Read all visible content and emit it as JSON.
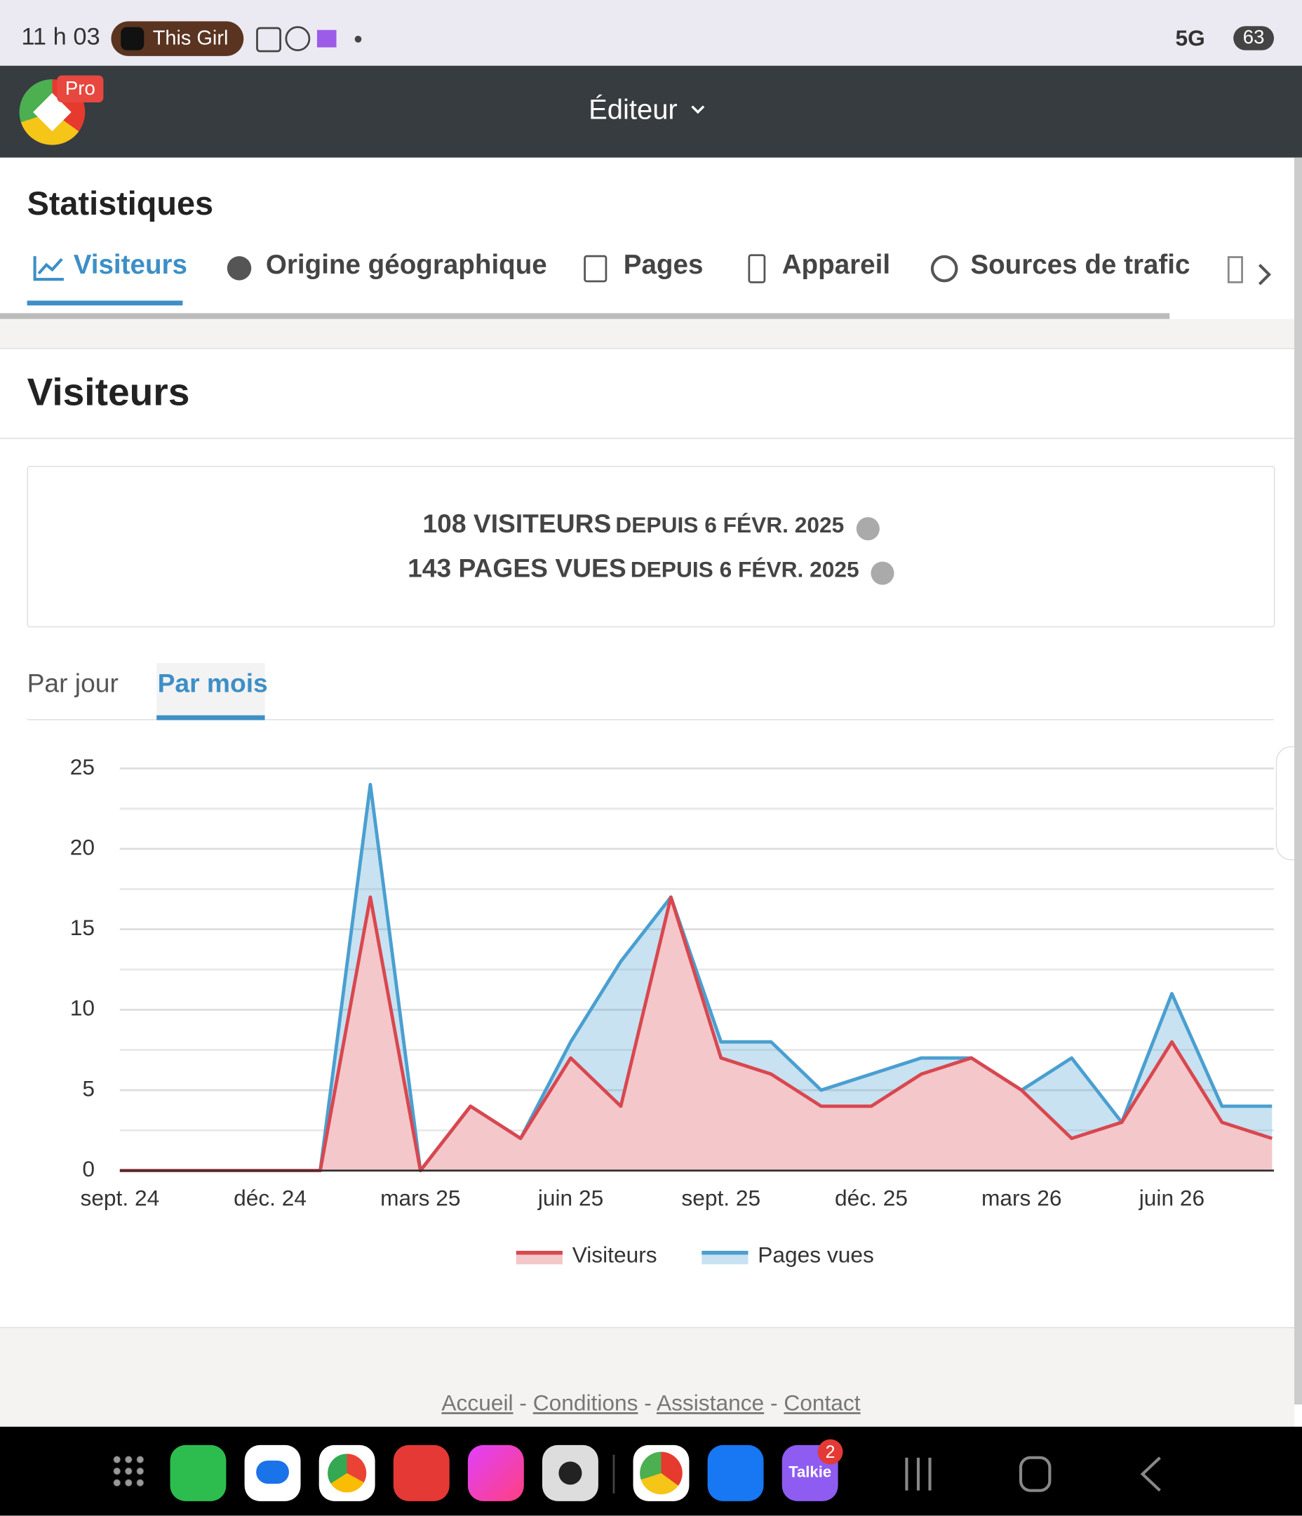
{
  "status_bar": {
    "time": "11 h 03",
    "media": "This Girl",
    "network": "5G",
    "battery": "63"
  },
  "header": {
    "badge": "Pro",
    "title": "Éditeur"
  },
  "page_title": "Statistiques",
  "tabs": [
    "Visiteurs",
    "Origine géographique",
    "Pages",
    "Appareil",
    "Sources de trafic"
  ],
  "section_title": "Visiteurs",
  "summary": [
    {
      "count": "108 VISITEURS",
      "since": "DEPUIS 6 FÉVR. 2025"
    },
    {
      "count": "143 PAGES VUES",
      "since": "DEPUIS 6 FÉVR. 2025"
    }
  ],
  "period_tabs": [
    "Par jour",
    "Par mois"
  ],
  "chart_data": {
    "type": "area",
    "categories": [
      "sept. 24",
      null,
      null,
      "déc. 24",
      null,
      null,
      "mars 25",
      null,
      null,
      "juin 25",
      null,
      null,
      "sept. 25",
      null,
      null,
      "déc. 25",
      null,
      null,
      "mars 26",
      null,
      null,
      "juin 26",
      null,
      null
    ],
    "series": [
      {
        "name": "Pages vues",
        "color": "#4a9fd0",
        "values": [
          0,
          0,
          0,
          0,
          0,
          24,
          0,
          4,
          2,
          8,
          13,
          17,
          8,
          8,
          5,
          6,
          7,
          7,
          5,
          7,
          3,
          11,
          4,
          4
        ]
      },
      {
        "name": "Visiteurs",
        "color": "#d9474f",
        "values": [
          0,
          0,
          0,
          0,
          0,
          17,
          0,
          4,
          2,
          7,
          4,
          17,
          7,
          6,
          4,
          4,
          6,
          7,
          5,
          2,
          3,
          8,
          3,
          2
        ]
      }
    ],
    "ylim": [
      0,
      25
    ],
    "yticks": [
      0,
      5,
      10,
      15,
      20,
      25
    ],
    "grid": true,
    "legend": "bottom"
  },
  "footer": {
    "links": [
      "Accueil",
      "Conditions",
      "Assistance",
      "Contact"
    ],
    "separator": "-"
  },
  "dock": {
    "badge": "2",
    "talkie": "Talkie"
  }
}
